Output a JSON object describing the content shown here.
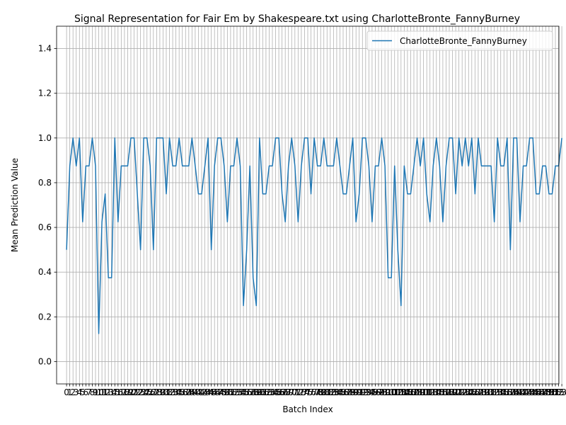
{
  "chart_data": {
    "type": "line",
    "title": "Signal Representation for Fair Em by Shakespeare.txt using CharlotteBronte_FannyBurney",
    "xlabel": "Batch Index",
    "ylabel": "Mean Prediction Value",
    "ylim": [
      -0.1,
      1.5
    ],
    "xlim": [
      -3.1,
      153.1
    ],
    "grid": true,
    "legend_position": "top-right",
    "yticks": [
      0.0,
      0.2,
      0.4,
      0.6,
      0.8,
      1.0,
      1.2,
      1.4
    ],
    "series": [
      {
        "name": "CharlotteBronte_FannyBurney",
        "color": "#1f77b4",
        "values": [
          0.5,
          0.875,
          1.0,
          0.875,
          1.0,
          0.625,
          0.875,
          0.875,
          1.0,
          0.875,
          0.125,
          0.625,
          0.75,
          0.375,
          0.375,
          1.0,
          0.625,
          0.875,
          0.875,
          0.875,
          1.0,
          1.0,
          0.75,
          0.5,
          1.0,
          1.0,
          0.875,
          0.5,
          1.0,
          1.0,
          1.0,
          0.75,
          1.0,
          0.875,
          0.875,
          1.0,
          0.875,
          0.875,
          0.875,
          1.0,
          0.875,
          0.75,
          0.75,
          0.875,
          1.0,
          0.5,
          0.875,
          1.0,
          1.0,
          0.875,
          0.625,
          0.875,
          0.875,
          1.0,
          0.875,
          0.25,
          0.5,
          0.875,
          0.375,
          0.25,
          1.0,
          0.75,
          0.75,
          0.875,
          0.875,
          1.0,
          1.0,
          0.75,
          0.625,
          0.875,
          1.0,
          0.875,
          0.625,
          0.875,
          1.0,
          1.0,
          0.75,
          1.0,
          0.875,
          0.875,
          1.0,
          0.875,
          0.875,
          0.875,
          1.0,
          0.875,
          0.75,
          0.75,
          0.875,
          1.0,
          0.625,
          0.75,
          1.0,
          1.0,
          0.875,
          0.625,
          0.875,
          0.875,
          1.0,
          0.875,
          0.375,
          0.375,
          0.875,
          0.5,
          0.25,
          0.875,
          0.75,
          0.75,
          0.875,
          1.0,
          0.875,
          1.0,
          0.75,
          0.625,
          0.875,
          1.0,
          0.875,
          0.625,
          0.875,
          1.0,
          1.0,
          0.75,
          1.0,
          0.875,
          1.0,
          0.875,
          1.0,
          0.75,
          1.0,
          0.875,
          0.875,
          0.875,
          0.875,
          0.625,
          1.0,
          0.875,
          0.875,
          1.0,
          0.5,
          1.0,
          1.0,
          0.625,
          0.875,
          0.875,
          1.0,
          1.0,
          0.75,
          0.75,
          0.875,
          0.875,
          0.75,
          0.75,
          0.875,
          0.875,
          1.0
        ]
      }
    ]
  }
}
